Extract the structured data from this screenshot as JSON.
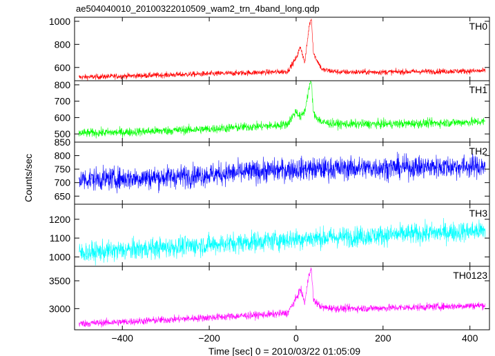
{
  "chart_data": {
    "type": "line",
    "title": "ae504040010_20100322010509_wam2_trn_4band_long.qdp",
    "xlabel": "Time [sec] 0 = 2010/03/22 01:05:09",
    "ylabel": "Counts/sec",
    "xlim": [
      -510,
      445
    ],
    "x_ticks": [
      -400,
      -200,
      0,
      200,
      400
    ],
    "grid": false,
    "panels": [
      {
        "name": "TH0",
        "color": "#ff0000",
        "ylim": [
          485,
          1035
        ],
        "y_ticks": [
          600,
          800,
          1000
        ],
        "x": [
          -500,
          -400,
          -300,
          -200,
          -100,
          -50,
          -20,
          0,
          10,
          20,
          30,
          35,
          40,
          60,
          100,
          200,
          300,
          435
        ],
        "y": [
          515,
          525,
          535,
          545,
          555,
          560,
          565,
          680,
          780,
          640,
          960,
          1030,
          720,
          580,
          560,
          560,
          565,
          570
        ],
        "noise": 40
      },
      {
        "name": "TH1",
        "color": "#00ff00",
        "ylim": [
          450,
          825
        ],
        "y_ticks": [
          500,
          600,
          700,
          800
        ],
        "x": [
          -500,
          -400,
          -300,
          -200,
          -100,
          -50,
          -20,
          0,
          10,
          20,
          30,
          35,
          40,
          60,
          100,
          200,
          300,
          435
        ],
        "y": [
          505,
          510,
          520,
          530,
          545,
          550,
          560,
          640,
          600,
          640,
          790,
          820,
          620,
          570,
          560,
          560,
          565,
          575
        ],
        "noise": 45
      },
      {
        "name": "TH2",
        "color": "#0000ff",
        "ylim": [
          620,
          850
        ],
        "y_ticks": [
          650,
          700,
          750,
          800,
          850
        ],
        "x": [
          -500,
          -400,
          -300,
          -200,
          -100,
          0,
          100,
          200,
          300,
          435
        ],
        "y": [
          712,
          715,
          720,
          730,
          740,
          750,
          752,
          755,
          758,
          760
        ],
        "noise": 70
      },
      {
        "name": "TH3",
        "color": "#00ffff",
        "ylim": [
          950,
          1280
        ],
        "y_ticks": [
          1000,
          1100,
          1200
        ],
        "x": [
          -500,
          -400,
          -300,
          -200,
          -100,
          0,
          100,
          200,
          300,
          435
        ],
        "y": [
          1020,
          1035,
          1050,
          1065,
          1080,
          1095,
          1105,
          1115,
          1125,
          1140
        ],
        "noise": 90
      },
      {
        "name": "TH0123",
        "color": "#ff00ff",
        "ylim": [
          2620,
          3760
        ],
        "y_ticks": [
          3000,
          3500
        ],
        "x": [
          -500,
          -400,
          -300,
          -200,
          -100,
          -50,
          -20,
          0,
          10,
          20,
          30,
          35,
          40,
          60,
          100,
          200,
          300,
          435
        ],
        "y": [
          2730,
          2760,
          2800,
          2840,
          2880,
          2900,
          2920,
          3180,
          3350,
          3100,
          3650,
          3700,
          3150,
          3020,
          3000,
          3010,
          3030,
          3060
        ],
        "noise": 110
      }
    ]
  }
}
